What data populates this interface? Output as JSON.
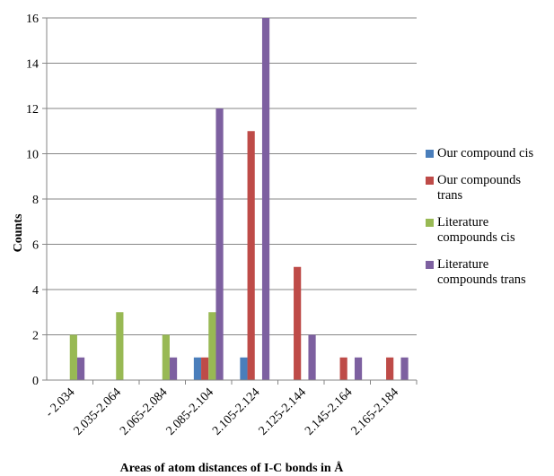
{
  "chart_data": {
    "type": "bar",
    "title": "",
    "xlabel": "Areas of atom distances of I-C bonds in Å",
    "ylabel": "Counts",
    "ylim": [
      0,
      16
    ],
    "yticks": [
      0,
      2,
      4,
      6,
      8,
      10,
      12,
      14,
      16
    ],
    "grid": true,
    "legend_position": "right",
    "categories": [
      "- 2.034",
      "2.035-2.064",
      "2.065-2.084",
      "2.085-2.104",
      "2.105-2.124",
      "2.125-2.144",
      "2.145-2.164",
      "2.165-2.184"
    ],
    "series": [
      {
        "name": "Our compound cis",
        "color": "#4a7ebb",
        "values": [
          0,
          0,
          0,
          1,
          1,
          0,
          0,
          0
        ]
      },
      {
        "name": "Our compounds trans",
        "color": "#be4b48",
        "values": [
          0,
          0,
          0,
          1,
          11,
          5,
          1,
          1
        ]
      },
      {
        "name": "Literature compounds cis",
        "color": "#98b954",
        "values": [
          2,
          3,
          2,
          3,
          0,
          0,
          0,
          0
        ]
      },
      {
        "name": "Literature compounds trans",
        "color": "#7d60a0",
        "values": [
          1,
          0,
          1,
          12,
          16,
          2,
          1,
          1
        ]
      }
    ]
  }
}
